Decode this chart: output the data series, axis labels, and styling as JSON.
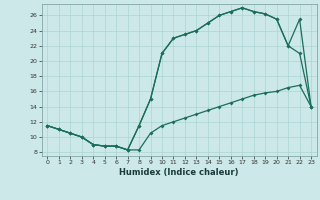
{
  "xlabel": "Humidex (Indice chaleur)",
  "bg_color": "#cce8e8",
  "line_color": "#1a6e5a",
  "xlim": [
    -0.5,
    23.5
  ],
  "ylim": [
    7.5,
    27.5
  ],
  "xticks": [
    0,
    1,
    2,
    3,
    4,
    5,
    6,
    7,
    8,
    9,
    10,
    11,
    12,
    13,
    14,
    15,
    16,
    17,
    18,
    19,
    20,
    21,
    22,
    23
  ],
  "yticks": [
    8,
    10,
    12,
    14,
    16,
    18,
    20,
    22,
    24,
    26
  ],
  "line1_x": [
    0,
    1,
    2,
    3,
    4,
    5,
    6,
    7,
    8,
    9,
    10,
    11,
    12,
    13,
    14,
    15,
    16,
    17,
    18,
    19,
    20,
    21,
    22,
    23
  ],
  "line1_y": [
    11.5,
    11.0,
    10.5,
    10.0,
    9.0,
    8.8,
    8.8,
    8.3,
    8.3,
    10.5,
    11.5,
    12.0,
    12.5,
    13.0,
    13.5,
    14.0,
    14.5,
    15.0,
    15.5,
    15.8,
    16.0,
    16.5,
    16.8,
    14.0
  ],
  "line2_x": [
    0,
    1,
    2,
    3,
    4,
    5,
    6,
    7,
    8,
    9,
    10,
    11,
    12,
    13,
    14,
    15,
    16,
    17,
    18,
    19,
    20,
    21,
    22,
    23
  ],
  "line2_y": [
    11.5,
    11.0,
    10.5,
    10.0,
    9.0,
    8.8,
    8.8,
    8.3,
    11.5,
    15.0,
    21.0,
    23.0,
    23.5,
    24.0,
    25.0,
    26.0,
    26.5,
    27.0,
    26.5,
    26.2,
    25.5,
    22.0,
    25.5,
    14.0
  ],
  "line3_x": [
    0,
    1,
    2,
    3,
    4,
    5,
    6,
    7,
    8,
    9,
    10,
    11,
    12,
    13,
    14,
    15,
    16,
    17,
    18,
    19,
    20,
    21,
    22,
    23
  ],
  "line3_y": [
    11.5,
    11.0,
    10.5,
    10.0,
    9.0,
    8.8,
    8.8,
    8.3,
    11.5,
    15.0,
    21.0,
    23.0,
    23.5,
    24.0,
    25.0,
    26.0,
    26.5,
    27.0,
    26.5,
    26.2,
    25.5,
    22.0,
    21.0,
    14.0
  ],
  "grid_color": "#aad4d4",
  "markersize": 2.0
}
